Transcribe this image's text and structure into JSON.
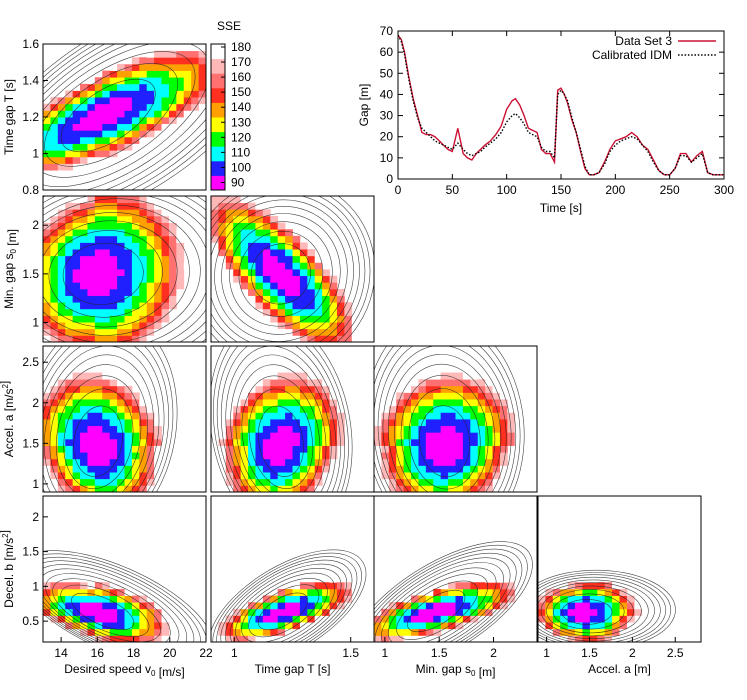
{
  "colorbar": {
    "title": "SSE",
    "ticks": [
      90,
      100,
      110,
      120,
      130,
      140,
      150,
      160,
      170,
      180
    ],
    "range": [
      85,
      182
    ],
    "palette": [
      "#ff00ff",
      "#2020ff",
      "#00ffff",
      "#00ff00",
      "#ffff00",
      "#ffa000",
      "#ff3020",
      "#ff7070",
      "#ffb8b8",
      "#ffffff"
    ]
  },
  "chart_data": [
    {
      "type": "line",
      "id": "gap-timeseries",
      "xlabel": "Time [s]",
      "ylabel": "Gap [m]",
      "xlim": [
        0,
        300
      ],
      "ylim": [
        0,
        70
      ],
      "xticks": [
        0,
        50,
        100,
        150,
        200,
        250,
        300
      ],
      "yticks": [
        0,
        10,
        20,
        30,
        40,
        50,
        60,
        70
      ],
      "legend_position": "top-right",
      "series": [
        {
          "name": "Data Set 3",
          "color": "#cc1133",
          "style": "solid",
          "x": [
            0,
            3,
            6,
            10,
            14,
            18,
            22,
            26,
            30,
            34,
            38,
            42,
            46,
            50,
            55,
            60,
            64,
            68,
            72,
            76,
            80,
            85,
            90,
            95,
            100,
            105,
            108,
            112,
            116,
            120,
            124,
            128,
            132,
            136,
            140,
            144,
            147,
            150,
            153,
            156,
            160,
            164,
            168,
            172,
            176,
            180,
            185,
            190,
            195,
            200,
            205,
            210,
            215,
            220,
            225,
            230,
            235,
            240,
            245,
            250,
            255,
            260,
            265,
            270,
            275,
            280,
            285,
            290,
            295,
            300
          ],
          "y": [
            68,
            66,
            60,
            48,
            38,
            30,
            22,
            21,
            21,
            20,
            18,
            16,
            14,
            13,
            24,
            12,
            10,
            9,
            12,
            14,
            16,
            18,
            21,
            25,
            33,
            37,
            38,
            35,
            30,
            24,
            23,
            22,
            14,
            12,
            12,
            8,
            42,
            43,
            40,
            36,
            28,
            22,
            13,
            5,
            2,
            2,
            3,
            8,
            14,
            18,
            19,
            20,
            22,
            20,
            16,
            14,
            9,
            4,
            2,
            2,
            5,
            12,
            12,
            8,
            11,
            13,
            3,
            2,
            2,
            2
          ]
        },
        {
          "name": "Calibrated IDM",
          "color": "#000000",
          "style": "dotted",
          "x": [
            0,
            3,
            6,
            10,
            14,
            18,
            22,
            26,
            30,
            34,
            38,
            42,
            46,
            50,
            55,
            60,
            64,
            68,
            72,
            76,
            80,
            85,
            90,
            95,
            100,
            105,
            108,
            112,
            116,
            120,
            124,
            128,
            132,
            136,
            140,
            144,
            147,
            150,
            153,
            156,
            160,
            164,
            168,
            172,
            176,
            180,
            185,
            190,
            195,
            200,
            205,
            210,
            215,
            220,
            225,
            230,
            235,
            240,
            245,
            250,
            255,
            260,
            265,
            270,
            275,
            280,
            285,
            290,
            295,
            300
          ],
          "y": [
            68,
            65,
            59,
            47,
            37,
            29,
            24,
            22,
            20,
            18,
            17,
            16,
            15,
            14,
            17,
            14,
            12,
            11,
            12,
            13,
            15,
            17,
            19,
            22,
            27,
            30,
            31,
            29,
            26,
            22,
            21,
            20,
            15,
            13,
            13,
            10,
            40,
            42,
            40,
            37,
            29,
            22,
            14,
            6,
            2,
            2,
            3,
            7,
            13,
            16,
            18,
            19,
            20,
            19,
            16,
            13,
            8,
            4,
            2,
            2,
            5,
            11,
            11,
            8,
            10,
            12,
            3,
            2,
            2,
            2
          ]
        }
      ]
    },
    {
      "type": "heatmap",
      "id": "v0-T",
      "row": 0,
      "col": 0,
      "ylabel": "Time gap T [s]",
      "xlim": [
        13,
        22
      ],
      "ylim": [
        0.8,
        1.6
      ],
      "yticks": [
        0.8,
        1,
        1.2,
        1.4,
        1.6
      ],
      "center": [
        16.2,
        1.2
      ],
      "spread": [
        2.2,
        0.12
      ],
      "corr": 0.75,
      "skew": [
        1.6,
        0.6
      ]
    },
    {
      "type": "heatmap",
      "id": "v0-s0",
      "row": 1,
      "col": 0,
      "ylabel": "Min. gap s0 [m]",
      "xlim": [
        13,
        22
      ],
      "ylim": [
        0.8,
        2.3
      ],
      "yticks": [
        1,
        1.5,
        2
      ],
      "center": [
        16.0,
        1.5
      ],
      "spread": [
        1.6,
        0.3
      ],
      "corr": 0.1,
      "skew": [
        1.8,
        0.0
      ]
    },
    {
      "type": "heatmap",
      "id": "T-s0",
      "row": 1,
      "col": 1,
      "xlim": [
        0.9,
        1.6
      ],
      "ylim": [
        0.8,
        2.3
      ],
      "center": [
        1.2,
        1.5
      ],
      "spread": [
        0.12,
        0.3
      ],
      "corr": -0.75,
      "skew": [
        0.0,
        0.0
      ]
    },
    {
      "type": "heatmap",
      "id": "v0-a",
      "row": 2,
      "col": 0,
      "ylabel": "Accel. a [m/s2]",
      "xlim": [
        13,
        22
      ],
      "ylim": [
        0.9,
        2.7
      ],
      "yticks": [
        1,
        1.5,
        2,
        2.5
      ],
      "center": [
        16.0,
        1.45
      ],
      "spread": [
        1.2,
        0.3
      ],
      "corr": -0.2,
      "skew": [
        0.3,
        2.2
      ]
    },
    {
      "type": "heatmap",
      "id": "T-a",
      "row": 2,
      "col": 1,
      "xlim": [
        0.9,
        1.6
      ],
      "ylim": [
        0.9,
        2.7
      ],
      "center": [
        1.2,
        1.45
      ],
      "spread": [
        0.09,
        0.3
      ],
      "corr": 0.2,
      "skew": [
        0.0,
        2.2
      ]
    },
    {
      "type": "heatmap",
      "id": "s0-a",
      "row": 2,
      "col": 2,
      "xlim": [
        0.9,
        2.4
      ],
      "ylim": [
        0.9,
        2.7
      ],
      "center": [
        1.55,
        1.45
      ],
      "spread": [
        0.22,
        0.3
      ],
      "corr": 0.1,
      "skew": [
        0.0,
        2.2
      ]
    },
    {
      "type": "heatmap",
      "id": "v0-b",
      "row": 3,
      "col": 0,
      "xlabel": "Desired speed v0 [m/s]",
      "ylabel": "Decel. b [m/s2]",
      "xlim": [
        13,
        22
      ],
      "ylim": [
        0.2,
        2.3
      ],
      "xticks": [
        14,
        16,
        18,
        20,
        22
      ],
      "yticks": [
        0.5,
        1,
        1.5,
        2
      ],
      "center": [
        16.0,
        0.62
      ],
      "spread": [
        1.3,
        0.15
      ],
      "corr": -0.5,
      "skew": [
        2.0,
        1.2
      ]
    },
    {
      "type": "heatmap",
      "id": "T-b",
      "row": 3,
      "col": 1,
      "xlabel": "Time gap T [s]",
      "xlim": [
        0.9,
        1.6
      ],
      "ylim": [
        0.2,
        2.3
      ],
      "xticks": [
        1,
        1.5
      ],
      "center": [
        1.2,
        0.62
      ],
      "spread": [
        0.1,
        0.15
      ],
      "corr": 0.7,
      "skew": [
        0.8,
        1.2
      ]
    },
    {
      "type": "heatmap",
      "id": "s0-b",
      "row": 3,
      "col": 2,
      "xlabel": "Min. gap s0 [m]",
      "xlim": [
        0.9,
        2.4
      ],
      "ylim": [
        0.2,
        2.3
      ],
      "xticks": [
        1,
        1.5,
        2
      ],
      "center": [
        1.45,
        0.62
      ],
      "spread": [
        0.25,
        0.15
      ],
      "corr": 0.7,
      "skew": [
        0.8,
        1.5
      ]
    },
    {
      "type": "heatmap",
      "id": "a-b",
      "row": 3,
      "col": 3,
      "xlabel": "Accel. a [m]",
      "xlim": [
        0.9,
        2.8
      ],
      "ylim": [
        0.2,
        2.3
      ],
      "xticks": [
        1,
        1.5,
        2,
        2.5
      ],
      "center": [
        1.42,
        0.62
      ],
      "spread": [
        0.2,
        0.15
      ],
      "corr": 0.0,
      "skew": [
        2.2,
        0.8
      ]
    }
  ]
}
